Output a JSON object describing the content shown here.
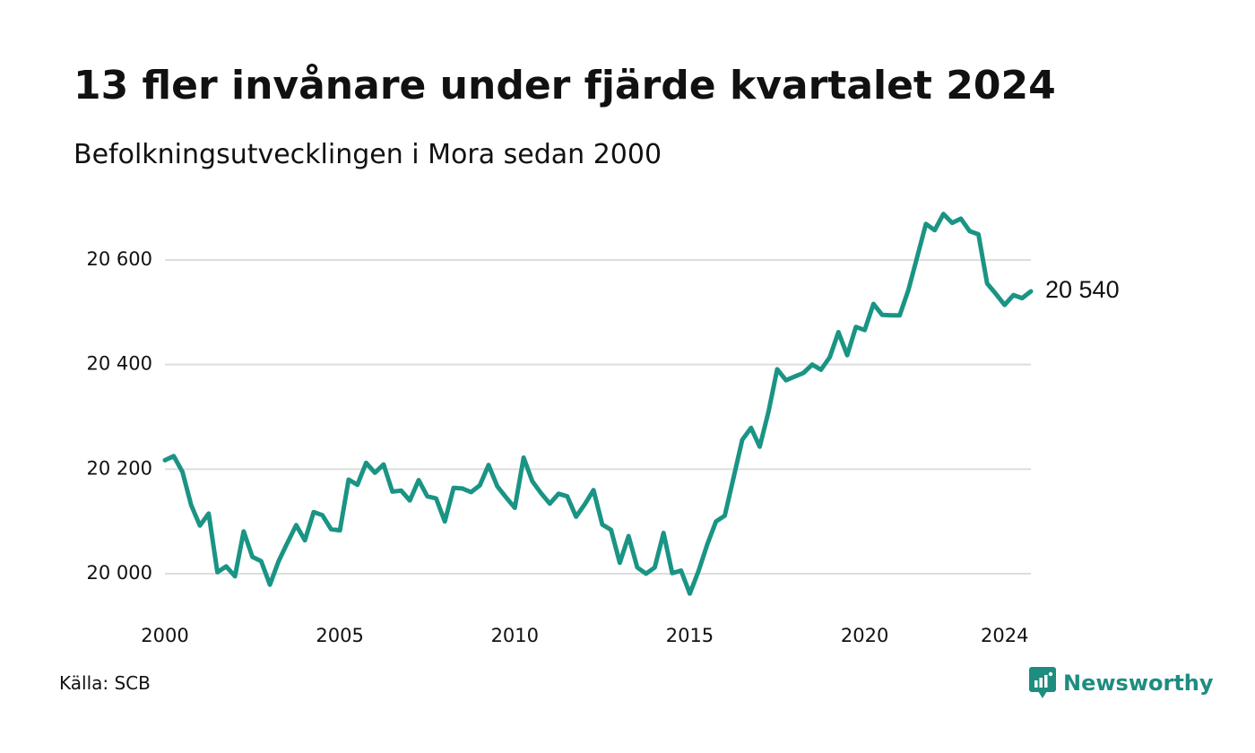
{
  "header": {
    "title": "13 fler invånare under fjärde kvartalet 2024",
    "subtitle": "Befolkningsutvecklingen i Mora sedan 2000"
  },
  "footer": {
    "source": "Källa: SCB",
    "brand": "Newsworthy",
    "brand_icon": "newsworthy-logo-icon"
  },
  "colors": {
    "line": "#1a9484",
    "grid": "#dddddd",
    "text": "#111111",
    "brand": "#1f8c80"
  },
  "chart_data": {
    "type": "line",
    "title": "13 fler invånare under fjärde kvartalet 2024",
    "subtitle": "Befolkningsutvecklingen i Mora sedan 2000",
    "xlabel": "",
    "ylabel": "",
    "x_ticks": [
      2000,
      2005,
      2010,
      2015,
      2020,
      2024
    ],
    "x_tick_labels": [
      "2000",
      "2005",
      "2010",
      "2015",
      "2020",
      "2024"
    ],
    "y_ticks": [
      20000,
      20200,
      20400,
      20600
    ],
    "y_tick_labels": [
      "20 000",
      "20 200",
      "20 400",
      "20 600"
    ],
    "xlim": [
      2000,
      2024.75
    ],
    "ylim": [
      19960,
      20715
    ],
    "grid": true,
    "end_label": "20 540",
    "series": [
      {
        "x": [
          2000.0,
          2000.25,
          2000.5,
          2000.75,
          2001.0,
          2001.25,
          2001.5,
          2001.75,
          2002.0,
          2002.25,
          2002.5,
          2002.75,
          2003.0,
          2003.25,
          2003.5,
          2003.75,
          2004.0,
          2004.25,
          2004.5,
          2004.75,
          2005.0,
          2005.25,
          2005.5,
          2005.75,
          2006.0,
          2006.25,
          2006.5,
          2006.75,
          2007.0,
          2007.25,
          2007.5,
          2007.75,
          2008.0,
          2008.25,
          2008.5,
          2008.75,
          2009.0,
          2009.25,
          2009.5,
          2009.75,
          2010.0,
          2010.25,
          2010.5,
          2010.75,
          2011.0,
          2011.25,
          2011.5,
          2011.75,
          2012.0,
          2012.25,
          2012.5,
          2012.75,
          2013.0,
          2013.25,
          2013.5,
          2013.75,
          2014.0,
          2014.25,
          2014.5,
          2014.75,
          2015.0,
          2015.25,
          2015.5,
          2015.75,
          2016.0,
          2016.25,
          2016.5,
          2016.75,
          2017.0,
          2017.25,
          2017.5,
          2017.75,
          2018.0,
          2018.25,
          2018.5,
          2018.75,
          2019.0,
          2019.25,
          2019.5,
          2019.75,
          2020.0,
          2020.25,
          2020.5,
          2020.75,
          2021.0,
          2021.25,
          2021.5,
          2021.75,
          2022.0,
          2022.25,
          2022.5,
          2022.75,
          2023.0,
          2023.25,
          2023.5,
          2023.75,
          2024.0,
          2024.25,
          2024.5,
          2024.75
        ],
        "values": [
          20217,
          20225,
          20195,
          20131,
          20092,
          20115,
          20003,
          20014,
          19995,
          20081,
          20032,
          20024,
          19979,
          20024,
          20059,
          20093,
          20064,
          20118,
          20112,
          20085,
          20083,
          20180,
          20170,
          20212,
          20193,
          20209,
          20157,
          20159,
          20140,
          20179,
          20148,
          20144,
          20100,
          20164,
          20163,
          20156,
          20169,
          20208,
          20167,
          20146,
          20126,
          20222,
          20177,
          20154,
          20134,
          20153,
          20148,
          20109,
          20133,
          20160,
          20094,
          20084,
          20021,
          20072,
          20012,
          20000,
          20012,
          20078,
          20001,
          20006,
          19962,
          20005,
          20056,
          20100,
          20111,
          20183,
          20256,
          20279,
          20243,
          20310,
          20391,
          20370,
          20377,
          20384,
          20400,
          20390,
          20414,
          20462,
          20418,
          20472,
          20466,
          20516,
          20495,
          20494,
          20494,
          20543,
          20606,
          20669,
          20657,
          20688,
          20671,
          20679,
          20655,
          20649,
          20555,
          20535,
          20514,
          20533,
          20527,
          20540
        ]
      }
    ]
  }
}
